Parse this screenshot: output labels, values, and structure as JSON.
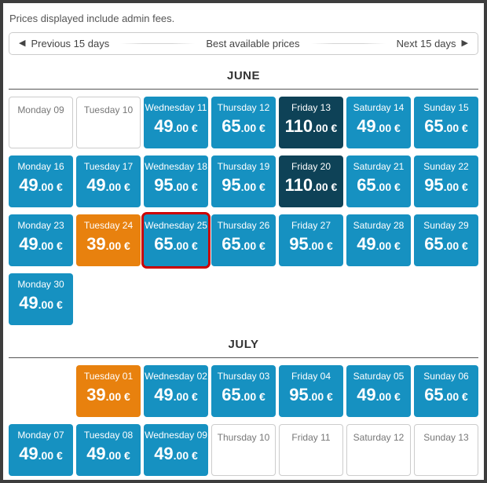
{
  "notice": "Prices displayed include admin fees.",
  "nav": {
    "prev_label": "Previous 15 days",
    "prev_icon": "◀",
    "center_label": "Best available prices",
    "next_label": "Next 15 days",
    "next_icon": "▶"
  },
  "colors": {
    "frame": "#3d3d3d",
    "available": "#1691c1",
    "premium": "#0e4257",
    "cheapest": "#e8810e",
    "selected": "#cc0000"
  },
  "months": [
    {
      "name": "JUNE",
      "cells": [
        {
          "day": "Monday 09",
          "variant": "empty"
        },
        {
          "day": "Tuesday 10",
          "variant": "empty"
        },
        {
          "day": "Wednesday 11",
          "variant": "standard",
          "price_main": "49",
          "price_frac": ".00 €"
        },
        {
          "day": "Thursday 12",
          "variant": "standard",
          "price_main": "65",
          "price_frac": ".00 €"
        },
        {
          "day": "Friday 13",
          "variant": "high",
          "price_main": "110",
          "price_frac": ".00 €"
        },
        {
          "day": "Saturday 14",
          "variant": "standard",
          "price_main": "49",
          "price_frac": ".00 €"
        },
        {
          "day": "Sunday 15",
          "variant": "standard",
          "price_main": "65",
          "price_frac": ".00 €"
        },
        {
          "day": "Monday 16",
          "variant": "standard",
          "price_main": "49",
          "price_frac": ".00 €"
        },
        {
          "day": "Tuesday 17",
          "variant": "standard",
          "price_main": "49",
          "price_frac": ".00 €"
        },
        {
          "day": "Wednesday 18",
          "variant": "standard",
          "price_main": "95",
          "price_frac": ".00 €"
        },
        {
          "day": "Thursday 19",
          "variant": "standard",
          "price_main": "95",
          "price_frac": ".00 €"
        },
        {
          "day": "Friday 20",
          "variant": "high",
          "price_main": "110",
          "price_frac": ".00 €"
        },
        {
          "day": "Saturday 21",
          "variant": "standard",
          "price_main": "65",
          "price_frac": ".00 €"
        },
        {
          "day": "Sunday 22",
          "variant": "standard",
          "price_main": "95",
          "price_frac": ".00 €"
        },
        {
          "day": "Monday 23",
          "variant": "standard",
          "price_main": "49",
          "price_frac": ".00 €"
        },
        {
          "day": "Tuesday 24",
          "variant": "low",
          "price_main": "39",
          "price_frac": ".00 €"
        },
        {
          "day": "Wednesday 25",
          "variant": "standard",
          "price_main": "65",
          "price_frac": ".00 €",
          "selected": true
        },
        {
          "day": "Thursday 26",
          "variant": "standard",
          "price_main": "65",
          "price_frac": ".00 €"
        },
        {
          "day": "Friday 27",
          "variant": "standard",
          "price_main": "95",
          "price_frac": ".00 €"
        },
        {
          "day": "Saturday 28",
          "variant": "standard",
          "price_main": "49",
          "price_frac": ".00 €"
        },
        {
          "day": "Sunday 29",
          "variant": "standard",
          "price_main": "65",
          "price_frac": ".00 €"
        },
        {
          "day": "Monday 30",
          "variant": "standard",
          "price_main": "49",
          "price_frac": ".00 €"
        }
      ]
    },
    {
      "name": "JULY",
      "cells": [
        {
          "variant": "blank"
        },
        {
          "day": "Tuesday 01",
          "variant": "low",
          "price_main": "39",
          "price_frac": ".00 €"
        },
        {
          "day": "Wednesday 02",
          "variant": "standard",
          "price_main": "49",
          "price_frac": ".00 €"
        },
        {
          "day": "Thursday 03",
          "variant": "standard",
          "price_main": "65",
          "price_frac": ".00 €"
        },
        {
          "day": "Friday 04",
          "variant": "standard",
          "price_main": "95",
          "price_frac": ".00 €"
        },
        {
          "day": "Saturday 05",
          "variant": "standard",
          "price_main": "49",
          "price_frac": ".00 €"
        },
        {
          "day": "Sunday 06",
          "variant": "standard",
          "price_main": "65",
          "price_frac": ".00 €"
        },
        {
          "day": "Monday 07",
          "variant": "standard",
          "price_main": "49",
          "price_frac": ".00 €"
        },
        {
          "day": "Tuesday 08",
          "variant": "standard",
          "price_main": "49",
          "price_frac": ".00 €"
        },
        {
          "day": "Wednesday 09",
          "variant": "standard",
          "price_main": "49",
          "price_frac": ".00 €"
        },
        {
          "day": "Thursday 10",
          "variant": "empty"
        },
        {
          "day": "Friday 11",
          "variant": "empty"
        },
        {
          "day": "Saturday 12",
          "variant": "empty"
        },
        {
          "day": "Sunday 13",
          "variant": "empty"
        }
      ]
    }
  ]
}
